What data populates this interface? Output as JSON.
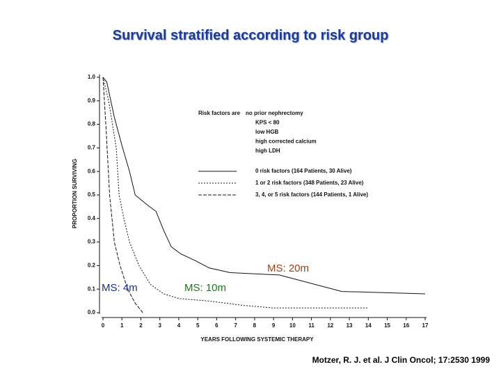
{
  "chart_data": {
    "type": "line",
    "title": "Survival stratified according to risk group",
    "xlabel": "YEARS FOLLOWING SYSTEMIC THERAPY",
    "ylabel": "PROPORTION SURVIVING",
    "xlim": [
      0,
      17
    ],
    "ylim": [
      0,
      1
    ],
    "xticks": [
      0,
      1,
      2,
      3,
      4,
      5,
      6,
      7,
      8,
      9,
      10,
      11,
      12,
      13,
      14,
      15,
      16,
      17
    ],
    "yticks": [
      {
        "value": 0,
        "label": "0.0"
      },
      0.1,
      0.2,
      0.3,
      0.4,
      0.5,
      0.6,
      0.7,
      0.8,
      0.9,
      {
        "value": 1,
        "label": "1.0"
      }
    ],
    "legend_title": "Risk factors are",
    "risk_factors": [
      "no prior nephrectomy",
      "KPS < 80",
      "low HGB",
      "high corrected calcium",
      "high LDH"
    ],
    "series": [
      {
        "name": "0 risk factors (164 Patients, 30 Alive)",
        "color": "#111111",
        "style": "solid",
        "x": [
          0,
          0.2,
          0.6,
          1,
          1.4,
          1.7,
          2.3,
          2.8,
          3.2,
          3.6,
          4.1,
          4.9,
          5.6,
          6.7,
          9.3,
          12.6,
          17
        ],
        "values": [
          1,
          0.98,
          0.83,
          0.71,
          0.6,
          0.5,
          0.46,
          0.43,
          0.35,
          0.28,
          0.25,
          0.22,
          0.19,
          0.17,
          0.16,
          0.09,
          0.08
        ]
      },
      {
        "name": "1 or 2 risk factors (348 Patients, 23 Alive)",
        "color": "#111111",
        "style": "dotted",
        "x": [
          0,
          0.3,
          0.7,
          0.85,
          1.1,
          1.4,
          1.9,
          2.5,
          3.2,
          4,
          5.5,
          6.5,
          7.5,
          9,
          14
        ],
        "values": [
          1,
          0.9,
          0.7,
          0.5,
          0.4,
          0.3,
          0.2,
          0.12,
          0.08,
          0.06,
          0.05,
          0.04,
          0.03,
          0.02,
          0.02
        ]
      },
      {
        "name": "3, 4, or 5 risk factors (144 Patients, 1 Alive)",
        "color": "#111111",
        "style": "dashed",
        "x": [
          0,
          0.15,
          0.35,
          0.6,
          0.9,
          1.3,
          1.7,
          2.1
        ],
        "values": [
          1,
          0.8,
          0.5,
          0.3,
          0.2,
          0.1,
          0.04,
          0
        ]
      }
    ],
    "annotations": [
      {
        "text": "MS: 20m",
        "color": "#a0401a"
      },
      {
        "text": "MS: 4m",
        "color": "#1c2f80"
      },
      {
        "text": "MS: 10m",
        "color": "#1a7a1a"
      }
    ],
    "citation": "Motzer, R. J. et al. J Clin Oncol; 17:2530 1999"
  }
}
